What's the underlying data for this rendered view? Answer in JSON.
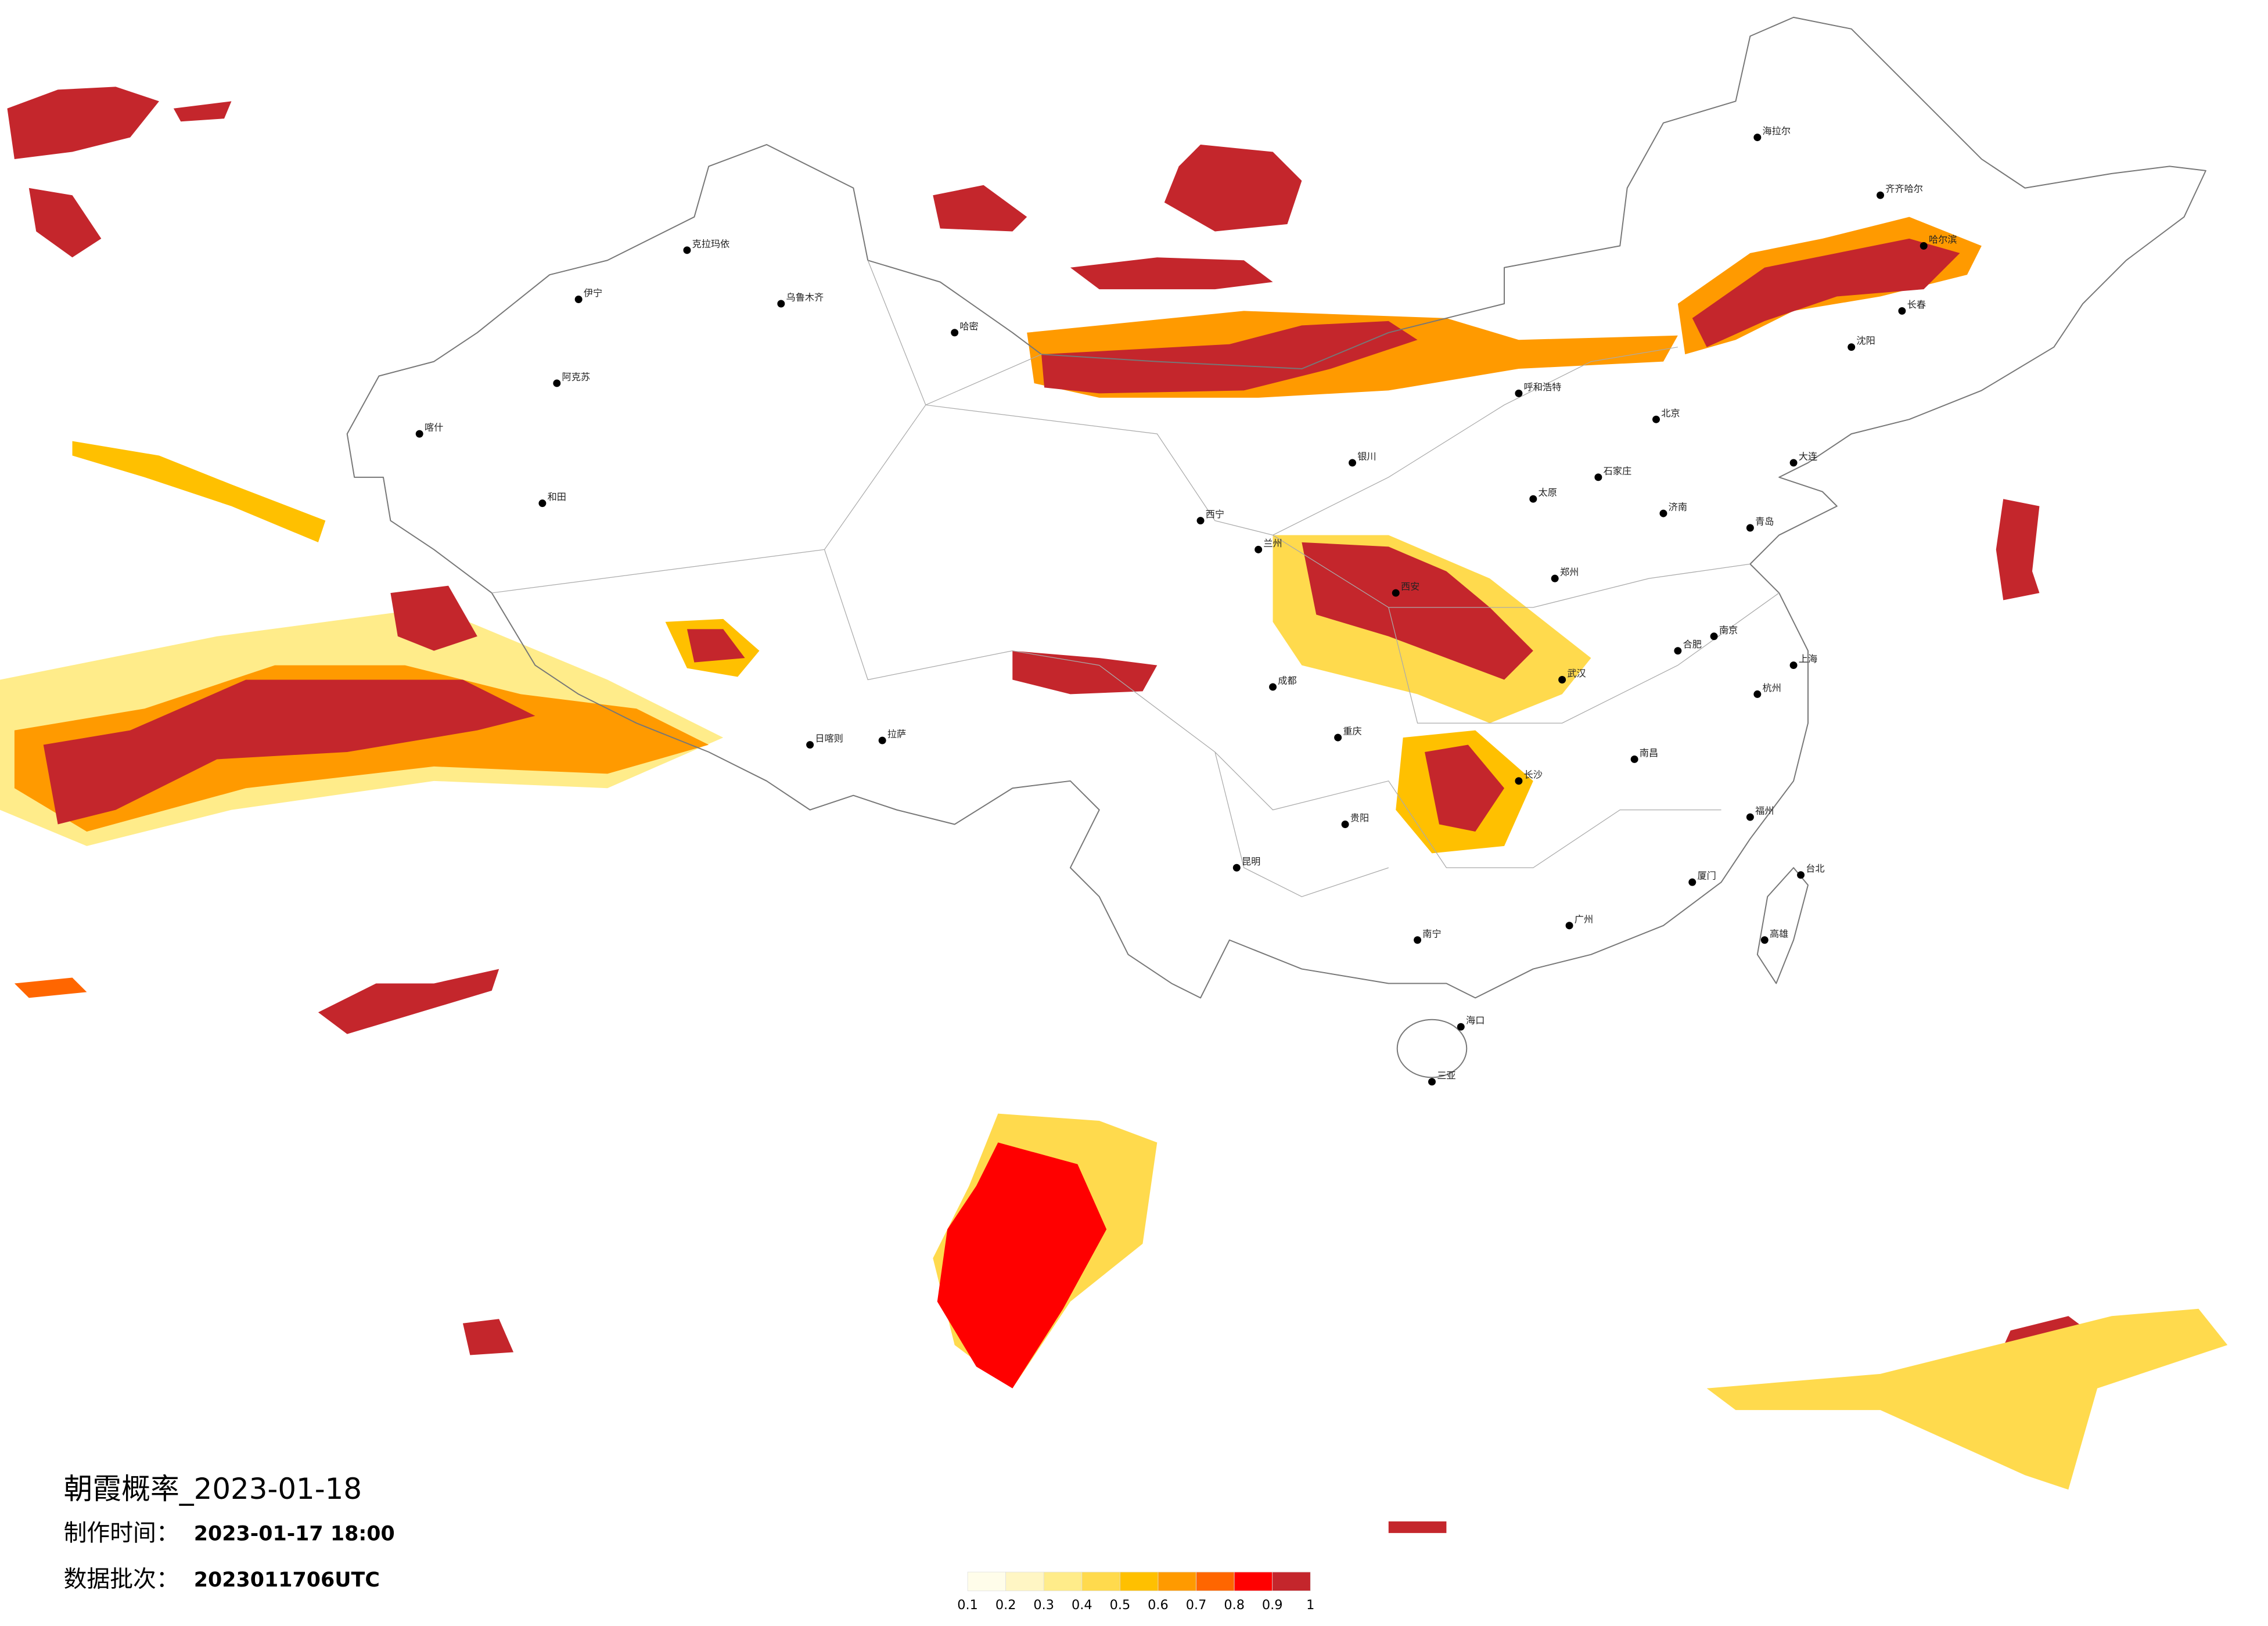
{
  "title": "朝霞概率_2023-01-18",
  "made_time": {
    "label": "制作时间：",
    "value": "2023-01-17 18:00"
  },
  "data_batch": {
    "label": "数据批次：",
    "value": "2023011706UTC"
  },
  "colorbar": {
    "ticks": [
      0.1,
      0.2,
      0.3,
      0.4,
      0.5,
      0.6,
      0.7,
      0.8,
      0.9,
      1
    ],
    "colors": [
      "#fffdea",
      "#fff6c4",
      "#ffec8a",
      "#ffda4d",
      "#ffc000",
      "#ff9a00",
      "#ff6600",
      "#ff0000",
      "#c4262c"
    ]
  },
  "cities": [
    "乌鲁木齐",
    "克拉玛依",
    "伊宁",
    "阿克苏",
    "喀什",
    "和田",
    "哈密",
    "拉萨",
    "日喀则",
    "西宁",
    "兰州",
    "银川",
    "呼和浩特",
    "北京",
    "石家庄",
    "太原",
    "西安",
    "郑州",
    "济南",
    "南京",
    "上海",
    "杭州",
    "合肥",
    "武汉",
    "长沙",
    "南昌",
    "福州",
    "广州",
    "南宁",
    "海口",
    "贵阳",
    "昆明",
    "成都",
    "重庆",
    "沈阳",
    "长春",
    "哈尔滨",
    "台北",
    "高雄",
    "海拉尔",
    "齐齐哈尔",
    "大连",
    "青岛",
    "厦门",
    "三亚"
  ]
}
